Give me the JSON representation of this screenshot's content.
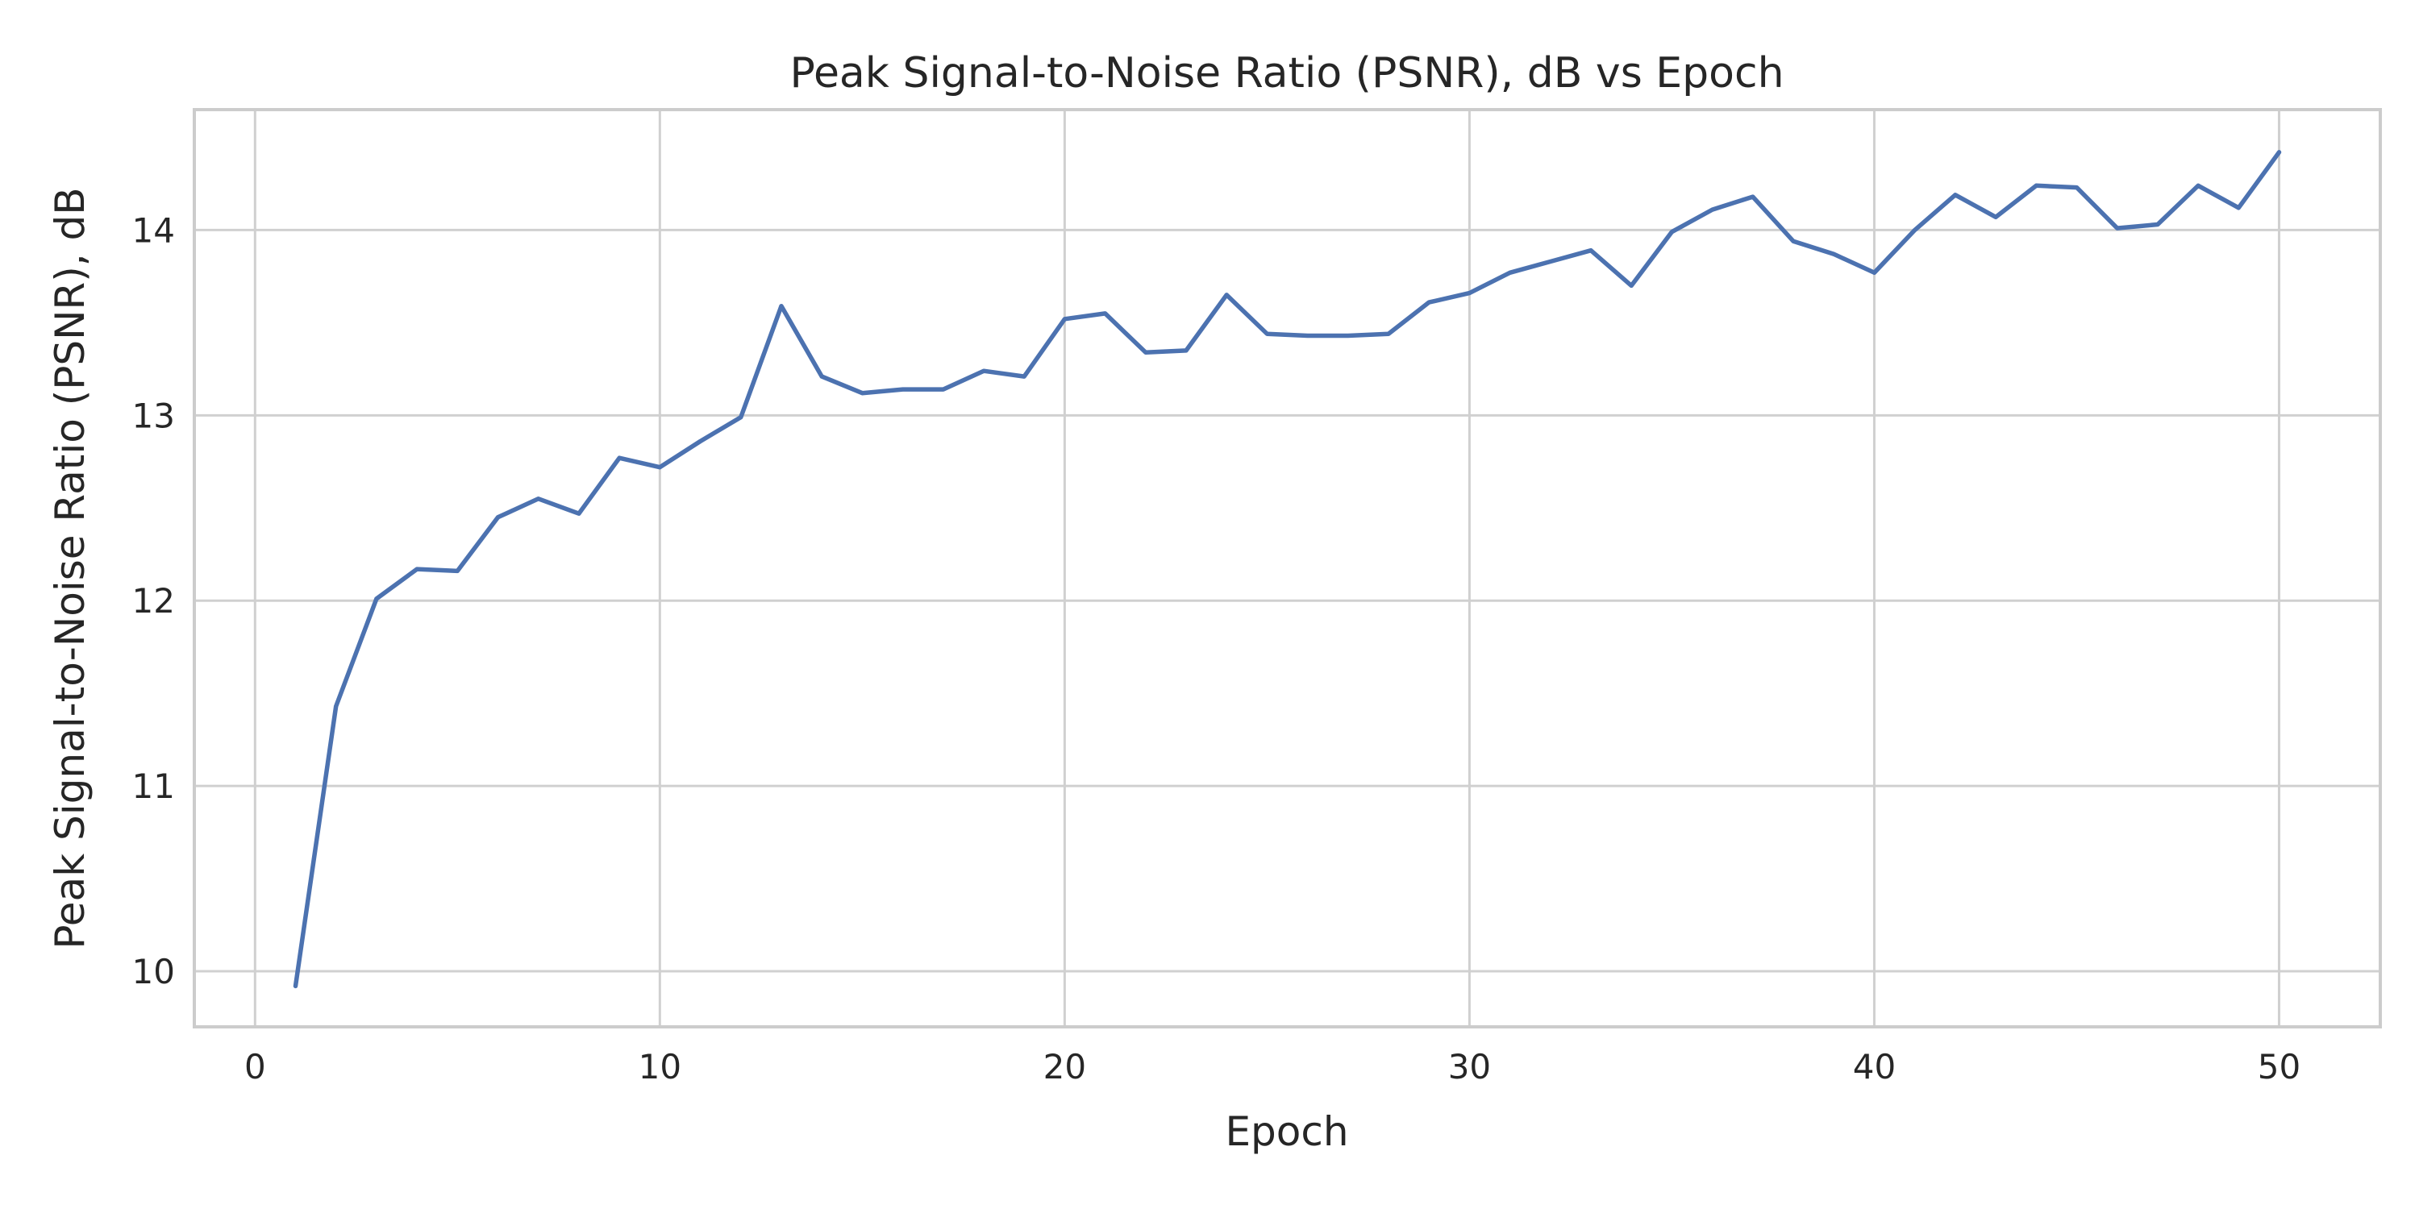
{
  "chart_data": {
    "type": "line",
    "title": "Peak Signal-to-Noise Ratio (PSNR), dB vs Epoch",
    "xlabel": "Epoch",
    "ylabel": "Peak Signal-to-Noise Ratio (PSNR), dB",
    "xlim": [
      -1.5,
      52.5
    ],
    "ylim": [
      9.7,
      14.65
    ],
    "xticks": [
      0,
      10,
      20,
      30,
      40,
      50
    ],
    "yticks": [
      10,
      11,
      12,
      13,
      14
    ],
    "grid": true,
    "line_color": "#4c72b0",
    "x": [
      1,
      2,
      3,
      4,
      5,
      6,
      7,
      8,
      9,
      10,
      11,
      12,
      13,
      14,
      15,
      16,
      17,
      18,
      19,
      20,
      21,
      22,
      23,
      24,
      25,
      26,
      27,
      28,
      29,
      30,
      31,
      32,
      33,
      34,
      35,
      36,
      37,
      38,
      39,
      40,
      41,
      42,
      43,
      44,
      45,
      46,
      47,
      48,
      49,
      50
    ],
    "series": [
      {
        "values": [
          9.92,
          11.43,
          12.01,
          12.17,
          12.16,
          12.45,
          12.55,
          12.47,
          12.77,
          12.72,
          12.86,
          12.99,
          13.59,
          13.21,
          13.12,
          13.14,
          13.14,
          13.24,
          13.21,
          13.52,
          13.55,
          13.34,
          13.35,
          13.65,
          13.44,
          13.43,
          13.43,
          13.44,
          13.61,
          13.66,
          13.77,
          13.83,
          13.89,
          13.7,
          13.99,
          14.11,
          14.18,
          13.94,
          13.87,
          13.77,
          14.0,
          14.19,
          14.07,
          14.24,
          14.23,
          14.01,
          14.03,
          14.24,
          14.12,
          14.42
        ]
      }
    ]
  }
}
